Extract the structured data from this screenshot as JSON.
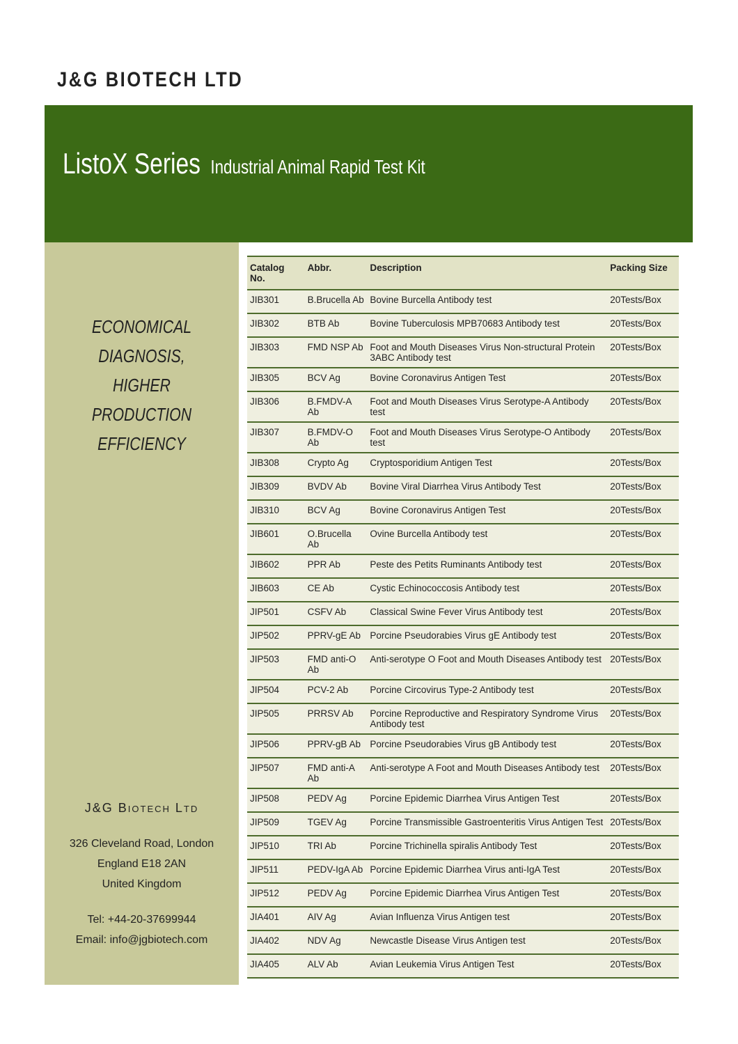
{
  "header": {
    "company": "J&G BIOTECH LTD"
  },
  "banner": {
    "title": "ListoX Series",
    "subtitle": "Industrial Animal Rapid Test Kit"
  },
  "slogan": [
    "ECONOMICAL DIAGNOSIS,",
    "HIGHER PRODUCTION",
    "EFFICIENCY"
  ],
  "contact": {
    "name": "J&G Biotech Ltd",
    "address": [
      "326 Cleveland Road, London",
      "England E18 2AN",
      "United Kingdom"
    ],
    "tel": "Tel: +44-20-37699944",
    "email": "Email: info@jgbiotech.com"
  },
  "table": {
    "columns": [
      "Catalog No.",
      "Abbr.",
      "Description",
      "Packing Size"
    ],
    "rows": [
      [
        "JIB301",
        "B.Brucella Ab",
        "Bovine Burcella Antibody test",
        "20Tests/Box"
      ],
      [
        "JIB302",
        "BTB Ab",
        "Bovine Tuberculosis MPB70683 Antibody test",
        "20Tests/Box"
      ],
      [
        "JIB303",
        "FMD NSP Ab",
        "Foot and Mouth Diseases Virus Non-structural Protein 3ABC Antibody test",
        "20Tests/Box"
      ],
      [
        "JIB305",
        "BCV Ag",
        "Bovine Coronavirus Antigen Test",
        "20Tests/Box"
      ],
      [
        "JIB306",
        "B.FMDV-A Ab",
        "Foot and Mouth Diseases Virus Serotype-A Antibody test",
        "20Tests/Box"
      ],
      [
        "JIB307",
        "B.FMDV-O Ab",
        "Foot and Mouth Diseases Virus Serotype-O Antibody test",
        "20Tests/Box"
      ],
      [
        "JIB308",
        "Crypto Ag",
        "Cryptosporidium Antigen Test",
        "20Tests/Box"
      ],
      [
        "JIB309",
        "BVDV Ab",
        "Bovine Viral Diarrhea Virus Antibody Test",
        "20Tests/Box"
      ],
      [
        "JIB310",
        "BCV Ag",
        "Bovine Coronavirus Antigen Test",
        "20Tests/Box"
      ],
      [
        "JIB601",
        "O.Brucella Ab",
        "Ovine Burcella Antibody test",
        "20Tests/Box"
      ],
      [
        "JIB602",
        "PPR Ab",
        "Peste des Petits Ruminants Antibody test",
        "20Tests/Box"
      ],
      [
        "JIB603",
        "CE Ab",
        "Cystic Echinococcosis Antibody test",
        "20Tests/Box"
      ],
      [
        "JIP501",
        "CSFV Ab",
        "Classical Swine Fever Virus Antibody test",
        "20Tests/Box"
      ],
      [
        "JIP502",
        "PPRV-gE Ab",
        "Porcine Pseudorabies Virus gE Antibody test",
        "20Tests/Box"
      ],
      [
        "JIP503",
        "FMD anti-O Ab",
        "Anti-serotype O Foot and Mouth Diseases Antibody test",
        "20Tests/Box"
      ],
      [
        "JIP504",
        "PCV-2 Ab",
        "Porcine Circovirus Type-2 Antibody test",
        "20Tests/Box"
      ],
      [
        "JIP505",
        "PRRSV Ab",
        "Porcine Reproductive and Respiratory Syndrome Virus Antibody test",
        "20Tests/Box"
      ],
      [
        "JIP506",
        "PPRV-gB Ab",
        "Porcine Pseudorabies Virus gB Antibody test",
        "20Tests/Box"
      ],
      [
        "JIP507",
        "FMD anti-A Ab",
        "Anti-serotype A Foot and Mouth Diseases Antibody test",
        "20Tests/Box"
      ],
      [
        "JIP508",
        "PEDV Ag",
        "Porcine Epidemic Diarrhea Virus Antigen Test",
        "20Tests/Box"
      ],
      [
        "JIP509",
        "TGEV Ag",
        "Porcine Transmissible Gastroenteritis Virus Antigen Test",
        "20Tests/Box"
      ],
      [
        "JIP510",
        "TRI Ab",
        "Porcine Trichinella spiralis Antibody Test",
        "20Tests/Box"
      ],
      [
        "JIP511",
        "PEDV-IgA Ab",
        "Porcine Epidemic Diarrhea Virus anti-IgA Test",
        "20Tests/Box"
      ],
      [
        "JIP512",
        "PEDV Ag",
        "Porcine Epidemic Diarrhea Virus Antigen Test",
        "20Tests/Box"
      ],
      [
        "JIA401",
        "AIV Ag",
        "Avian Influenza Virus Antigen test",
        "20Tests/Box"
      ],
      [
        "JIA402",
        "NDV Ag",
        "Newcastle Disease Virus Antigen test",
        "20Tests/Box"
      ],
      [
        "JIA405",
        "ALV Ab",
        "Avian Leukemia Virus Antigen Test",
        "20Tests/Box"
      ]
    ]
  }
}
